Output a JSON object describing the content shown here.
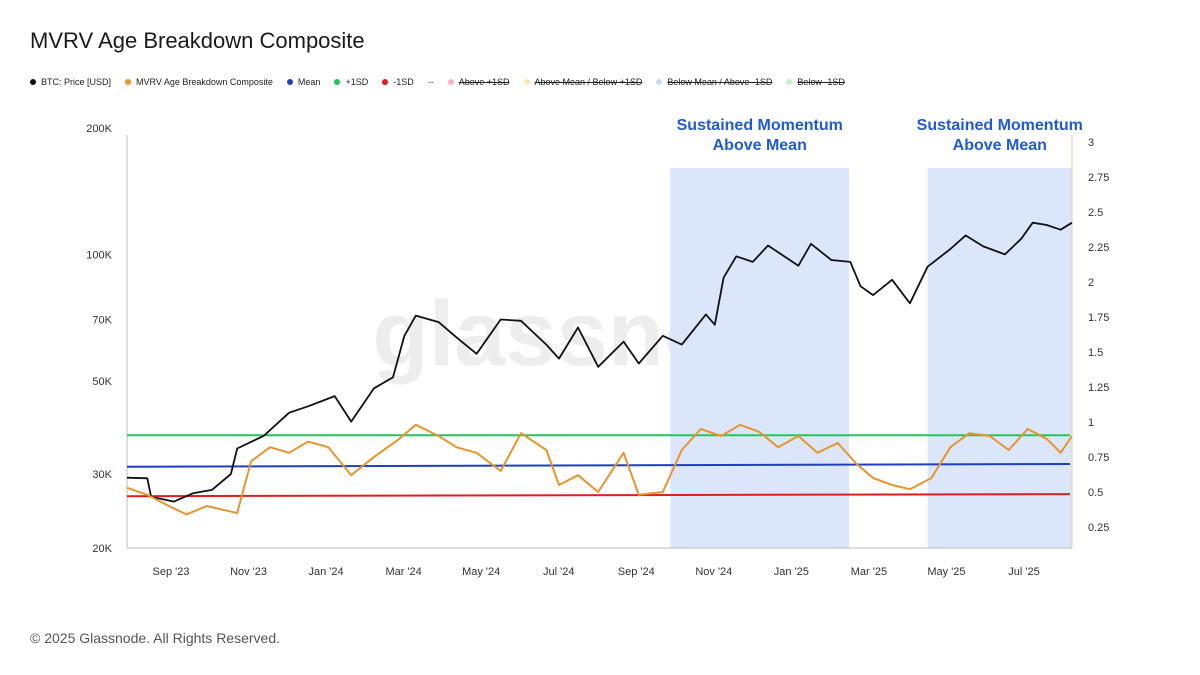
{
  "title": "MVRV Age Breakdown Composite",
  "watermark": "glassnode",
  "footer": "© 2025 Glassnode. All Rights Reserved.",
  "legend": [
    {
      "label": "BTC: Price [USD]",
      "color": "#111111",
      "active": true
    },
    {
      "label": "MVRV Age Breakdown Composite",
      "color": "#e8942e",
      "active": true
    },
    {
      "label": "Mean",
      "color": "#1f3fbf",
      "active": true
    },
    {
      "label": "+1SD",
      "color": "#22c55e",
      "active": true
    },
    {
      "label": "-1SD",
      "color": "#e11d1d",
      "active": true
    },
    {
      "label": "--",
      "color": "",
      "active": true
    },
    {
      "label": "Above +1SD",
      "color": "#f4b6c2",
      "active": false
    },
    {
      "label": "Above Mean / Below +1SD",
      "color": "#f6e9b8",
      "active": false
    },
    {
      "label": "Below Mean / Above -1SD",
      "color": "#c9d8f3",
      "active": false
    },
    {
      "label": "Below -1SD",
      "color": "#c7efc9",
      "active": false
    }
  ],
  "chart_data": {
    "type": "line",
    "title": "MVRV Age Breakdown Composite",
    "x_ticks": [
      "Sep '23",
      "Nov '23",
      "Jan '24",
      "Mar '24",
      "May '24",
      "Jul '24",
      "Sep '24",
      "Nov '24",
      "Jan '25",
      "Mar '25",
      "May '25",
      "Jul '25"
    ],
    "y_left": {
      "scale": "log",
      "range": [
        20000,
        200000
      ],
      "ticks": [
        20000,
        30000,
        50000,
        70000,
        100000,
        200000
      ],
      "tick_labels": [
        "20K",
        "30K",
        "50K",
        "70K",
        "100K",
        "200K"
      ]
    },
    "y_right": {
      "scale": "linear",
      "range": [
        0.1,
        3.1
      ],
      "ticks": [
        0.25,
        0.5,
        0.75,
        1,
        1.25,
        1.5,
        1.75,
        2,
        2.25,
        2.5,
        2.75,
        3
      ],
      "tick_labels": [
        "0.25",
        "0.5",
        "0.75",
        "1",
        "1.25",
        "1.5",
        "1.75",
        "2",
        "2.25",
        "2.5",
        "2.75",
        "3"
      ]
    },
    "x_range": [
      "2023-07-30",
      "2025-08-14"
    ],
    "grid": false,
    "legend_position": "top-left",
    "shaded_regions": [
      {
        "start": "2024-10-01",
        "end": "2025-02-19",
        "label_line1": "Sustained Momentum",
        "label_line2": "Above Mean",
        "color": "#dbe6fb"
      },
      {
        "start": "2025-04-22",
        "end": "2025-08-14",
        "label_line1": "Sustained Momentum",
        "label_line2": "Above Mean",
        "color": "#dbe6fb"
      }
    ],
    "reference_lines": [
      {
        "name": "+1SD",
        "color": "#22c55e",
        "start": 0.905,
        "end": 0.905
      },
      {
        "name": "Mean",
        "color": "#1f3fbf",
        "start": 0.68,
        "end": 0.7
      },
      {
        "name": "-1SD",
        "color": "#e11d1d",
        "start": 0.47,
        "end": 0.485
      }
    ],
    "series": [
      {
        "name": "BTC: Price [USD]",
        "axis": "left",
        "color": "#111111",
        "dates": [
          "2023-07-30",
          "2023-08-15",
          "2023-08-18",
          "2023-09-05",
          "2023-09-20",
          "2023-10-05",
          "2023-10-20",
          "2023-10-25",
          "2023-11-15",
          "2023-12-05",
          "2023-12-20",
          "2024-01-10",
          "2024-01-23",
          "2024-02-10",
          "2024-02-25",
          "2024-03-05",
          "2024-03-14",
          "2024-04-01",
          "2024-04-15",
          "2024-05-01",
          "2024-05-20",
          "2024-06-05",
          "2024-06-25",
          "2024-07-05",
          "2024-07-20",
          "2024-08-05",
          "2024-08-25",
          "2024-09-06",
          "2024-09-25",
          "2024-10-10",
          "2024-10-29",
          "2024-11-05",
          "2024-11-12",
          "2024-11-22",
          "2024-12-05",
          "2024-12-17",
          "2025-01-10",
          "2025-01-20",
          "2025-02-05",
          "2025-02-20",
          "2025-02-28",
          "2025-03-10",
          "2025-03-25",
          "2025-04-08",
          "2025-04-22",
          "2025-05-10",
          "2025-05-22",
          "2025-06-05",
          "2025-06-22",
          "2025-07-05",
          "2025-07-14",
          "2025-07-25",
          "2025-08-05",
          "2025-08-14"
        ],
        "values": [
          29400,
          29300,
          26500,
          25800,
          27000,
          27500,
          30000,
          34500,
          37000,
          42000,
          43500,
          46000,
          40000,
          48000,
          51000,
          64000,
          71500,
          69000,
          63500,
          58000,
          70000,
          69500,
          61000,
          56500,
          67000,
          54000,
          62000,
          55000,
          64000,
          61000,
          72000,
          68000,
          88000,
          99000,
          96000,
          105000,
          94000,
          106000,
          97000,
          96000,
          84000,
          80000,
          87000,
          76500,
          93500,
          103000,
          111000,
          104500,
          100000,
          109000,
          119000,
          117500,
          114500,
          119000
        ]
      },
      {
        "name": "MVRV Age Breakdown Composite",
        "axis": "right",
        "color": "#e8942e",
        "dates": [
          "2023-07-30",
          "2023-08-15",
          "2023-09-01",
          "2023-09-15",
          "2023-10-01",
          "2023-10-15",
          "2023-10-25",
          "2023-11-05",
          "2023-11-20",
          "2023-12-05",
          "2023-12-20",
          "2024-01-05",
          "2024-01-23",
          "2024-02-10",
          "2024-03-01",
          "2024-03-14",
          "2024-04-01",
          "2024-04-15",
          "2024-05-01",
          "2024-05-20",
          "2024-06-05",
          "2024-06-25",
          "2024-07-05",
          "2024-07-20",
          "2024-08-05",
          "2024-08-25",
          "2024-09-06",
          "2024-09-25",
          "2024-10-10",
          "2024-10-25",
          "2024-11-10",
          "2024-11-25",
          "2024-12-10",
          "2024-12-25",
          "2025-01-10",
          "2025-01-25",
          "2025-02-10",
          "2025-02-25",
          "2025-03-10",
          "2025-03-25",
          "2025-04-08",
          "2025-04-25",
          "2025-05-10",
          "2025-05-25",
          "2025-06-10",
          "2025-06-25",
          "2025-07-10",
          "2025-07-25",
          "2025-08-05",
          "2025-08-14"
        ],
        "values": [
          0.53,
          0.48,
          0.4,
          0.34,
          0.4,
          0.37,
          0.35,
          0.72,
          0.82,
          0.78,
          0.86,
          0.82,
          0.62,
          0.75,
          0.88,
          0.98,
          0.9,
          0.82,
          0.78,
          0.65,
          0.92,
          0.8,
          0.55,
          0.62,
          0.5,
          0.78,
          0.48,
          0.5,
          0.8,
          0.95,
          0.9,
          0.98,
          0.93,
          0.82,
          0.9,
          0.78,
          0.85,
          0.7,
          0.6,
          0.55,
          0.52,
          0.6,
          0.82,
          0.92,
          0.9,
          0.8,
          0.95,
          0.88,
          0.78,
          0.9
        ]
      }
    ]
  }
}
